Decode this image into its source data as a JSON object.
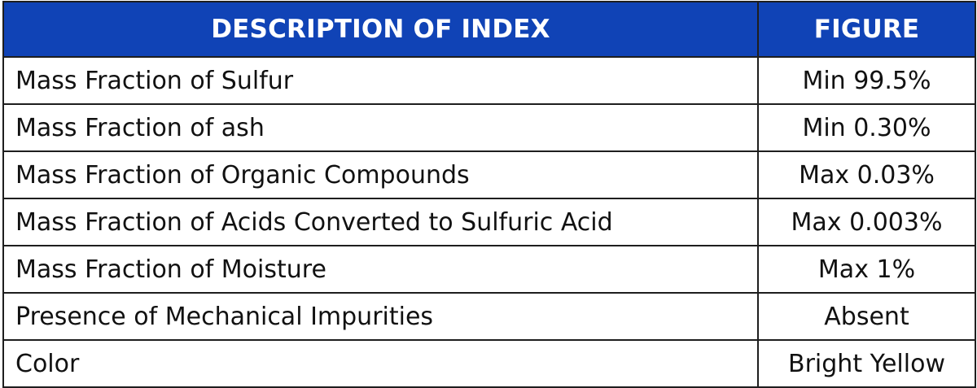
{
  "table": {
    "header": {
      "description": "DESCRIPTION OF INDEX",
      "figure": "FIGURE"
    },
    "rows": [
      {
        "description": "Mass Fraction of Sulfur",
        "figure": "Min 99.5%"
      },
      {
        "description": "Mass Fraction of ash",
        "figure": "Min 0.30%"
      },
      {
        "description": "Mass Fraction of Organic Compounds",
        "figure": "Max 0.03%"
      },
      {
        "description": "Mass Fraction of Acids Converted to Sulfuric Acid",
        "figure": "Max 0.003%"
      },
      {
        "description": "Mass Fraction of Moisture",
        "figure": "Max 1%"
      },
      {
        "description": "Presence of Mechanical Impurities",
        "figure": "Absent"
      },
      {
        "description": "Color",
        "figure": "Bright Yellow"
      }
    ]
  },
  "colors": {
    "header_background": "#1043b6",
    "header_text": "#ffffff",
    "border": "#1e1e1e",
    "body_text": "#111111"
  }
}
